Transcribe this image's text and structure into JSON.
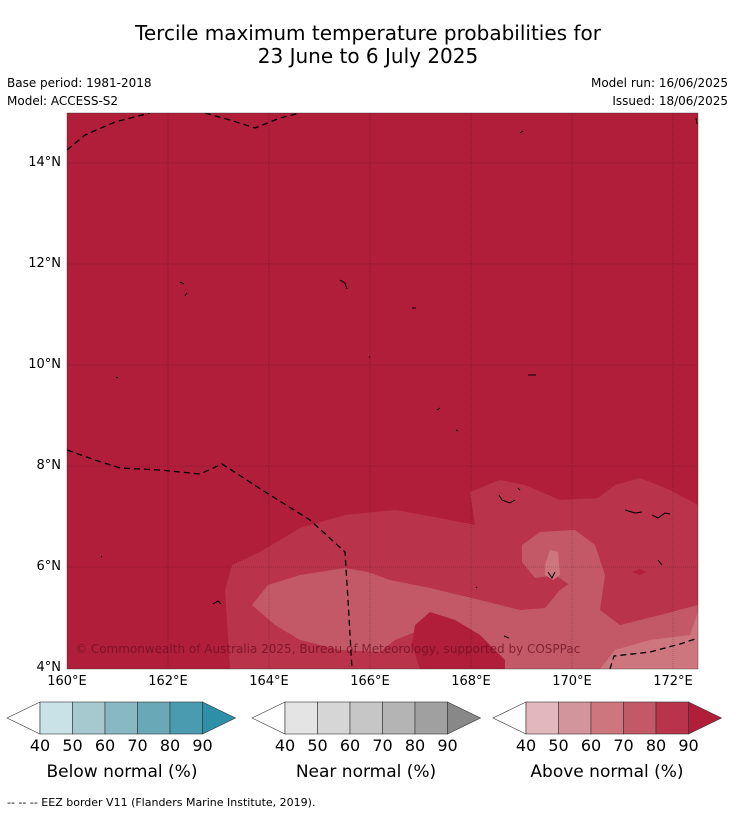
{
  "title_line1": "Tercile maximum temperature probabilities for",
  "title_line2": "23 June to 6 July 2025",
  "base_period": "Base period: 1981-2018",
  "model": "Model: ACCESS-S2",
  "model_run": "Model run: 16/06/2025",
  "issued": "Issued: 18/06/2025",
  "copyright": "© Commonwealth of Australia 2025, Bureau of Meteorology, supported by COSPPac",
  "lat_labels": [
    "14°N",
    "12°N",
    "10°N",
    "8°N",
    "6°N",
    "4°N"
  ],
  "lon_labels": [
    "160°E",
    "162°E",
    "164°E",
    "166°E",
    "168°E",
    "170°E",
    "172°E"
  ],
  "colorbars": [
    {
      "title": "Below normal (%)",
      "ticks": [
        "40",
        "50",
        "60",
        "70",
        "80",
        "90"
      ],
      "colors": [
        "#c9e2e8",
        "#a6c9d0",
        "#88b8c4",
        "#6aa8b8",
        "#4a9bb0",
        "#2e90a8"
      ]
    },
    {
      "title": "Near normal (%)",
      "ticks": [
        "40",
        "50",
        "60",
        "70",
        "80",
        "90"
      ],
      "colors": [
        "#e4e4e4",
        "#d6d6d6",
        "#c6c6c6",
        "#b4b4b4",
        "#a0a0a0",
        "#888888"
      ]
    },
    {
      "title": "Above normal (%)",
      "ticks": [
        "40",
        "50",
        "60",
        "70",
        "80",
        "90"
      ],
      "colors": [
        "#e2b8bd",
        "#d4949c",
        "#cd767e",
        "#c35966",
        "#b9334a",
        "#b01e3a"
      ]
    }
  ],
  "footer": "--  --  -- EEZ border V11 (Flanders Marine Institute, 2019)."
}
